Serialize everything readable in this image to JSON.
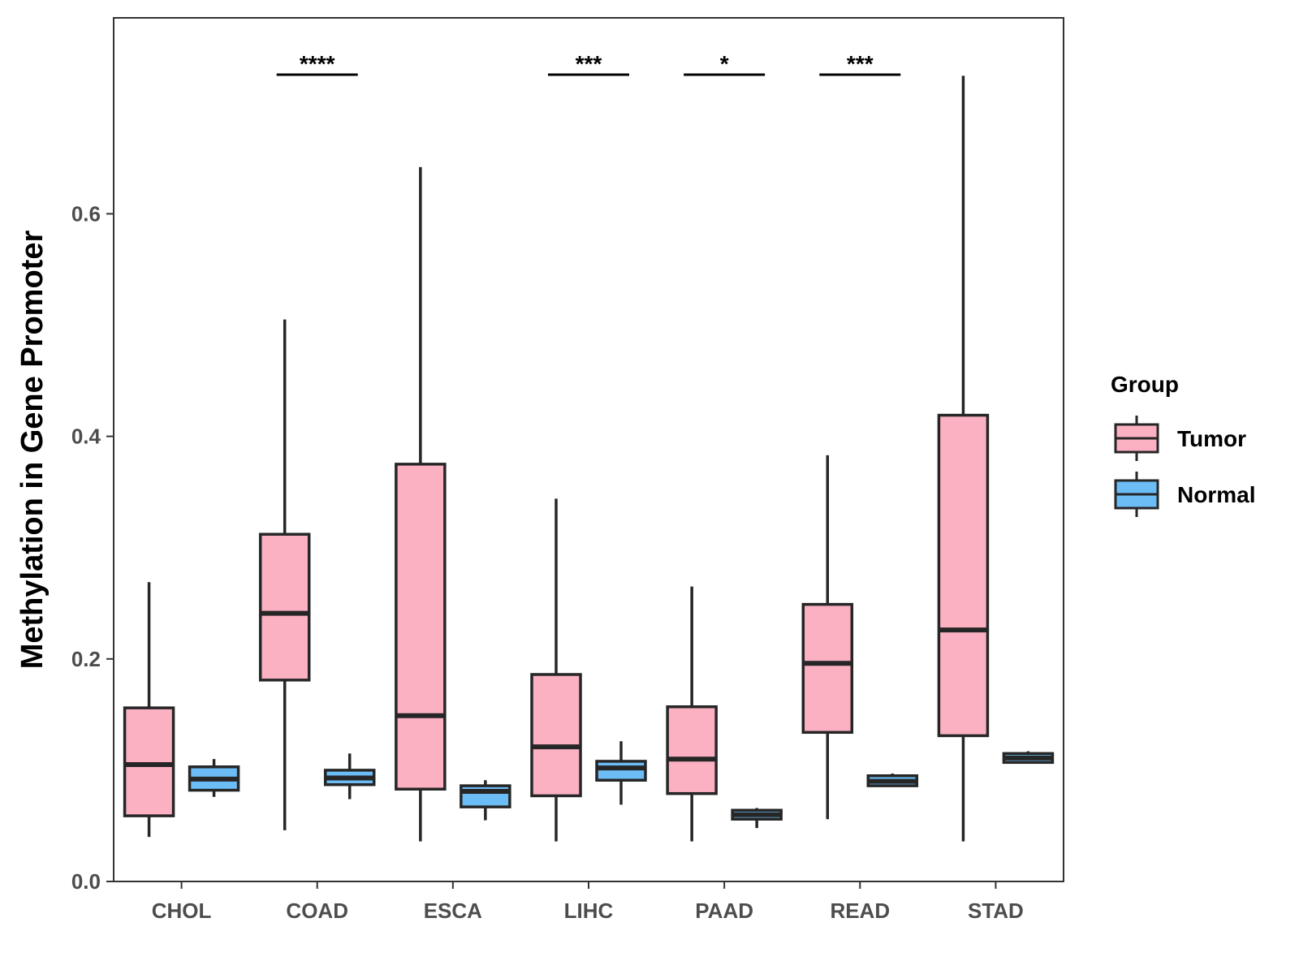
{
  "chart_data": {
    "type": "boxplot",
    "title": "",
    "xlabel": "",
    "ylabel": "Methylation in Gene Promoter",
    "ylim": [
      0,
      0.776
    ],
    "yticks": [
      0.0,
      0.2,
      0.4,
      0.6
    ],
    "ytick_labels": [
      "0.0",
      "0.2",
      "0.4",
      "0.6"
    ],
    "grid": false,
    "categories": [
      "CHOL",
      "COAD",
      "ESCA",
      "LIHC",
      "PAAD",
      "READ",
      "STAD"
    ],
    "legend": {
      "title": "Group",
      "position": "right",
      "items": [
        {
          "name": "Tumor",
          "color": "#fbb1c2"
        },
        {
          "name": "Normal",
          "color": "#6cbcf5"
        }
      ]
    },
    "series": [
      {
        "name": "Tumor",
        "color": "#fbb1c2",
        "boxes": [
          {
            "min": 0.04,
            "q1": 0.059,
            "median": 0.105,
            "q3": 0.156,
            "max": 0.269
          },
          {
            "min": 0.046,
            "q1": 0.181,
            "median": 0.241,
            "q3": 0.312,
            "max": 0.505
          },
          {
            "min": 0.036,
            "q1": 0.083,
            "median": 0.149,
            "q3": 0.375,
            "max": 0.642
          },
          {
            "min": 0.036,
            "q1": 0.077,
            "median": 0.121,
            "q3": 0.186,
            "max": 0.344
          },
          {
            "min": 0.036,
            "q1": 0.079,
            "median": 0.11,
            "q3": 0.157,
            "max": 0.265
          },
          {
            "min": 0.056,
            "q1": 0.134,
            "median": 0.196,
            "q3": 0.249,
            "max": 0.383
          },
          {
            "min": 0.036,
            "q1": 0.131,
            "median": 0.226,
            "q3": 0.419,
            "max": 0.724
          }
        ]
      },
      {
        "name": "Normal",
        "color": "#6cbcf5",
        "boxes": [
          {
            "min": 0.076,
            "q1": 0.082,
            "median": 0.092,
            "q3": 0.103,
            "max": 0.11
          },
          {
            "min": 0.074,
            "q1": 0.087,
            "median": 0.093,
            "q3": 0.1,
            "max": 0.115
          },
          {
            "min": 0.055,
            "q1": 0.067,
            "median": 0.081,
            "q3": 0.086,
            "max": 0.091
          },
          {
            "min": 0.069,
            "q1": 0.091,
            "median": 0.102,
            "q3": 0.108,
            "max": 0.126
          },
          {
            "min": 0.048,
            "q1": 0.056,
            "median": 0.06,
            "q3": 0.064,
            "max": 0.066
          },
          {
            "min": 0.085,
            "q1": 0.086,
            "median": 0.09,
            "q3": 0.095,
            "max": 0.097
          },
          {
            "min": 0.107,
            "q1": 0.107,
            "median": 0.111,
            "q3": 0.115,
            "max": 0.117
          }
        ]
      }
    ],
    "annotations": [
      {
        "category": "COAD",
        "label": "****",
        "y": 0.725
      },
      {
        "category": "LIHC",
        "label": "***",
        "y": 0.725
      },
      {
        "category": "PAAD",
        "label": "*",
        "y": 0.725
      },
      {
        "category": "READ",
        "label": "***",
        "y": 0.725
      }
    ]
  }
}
